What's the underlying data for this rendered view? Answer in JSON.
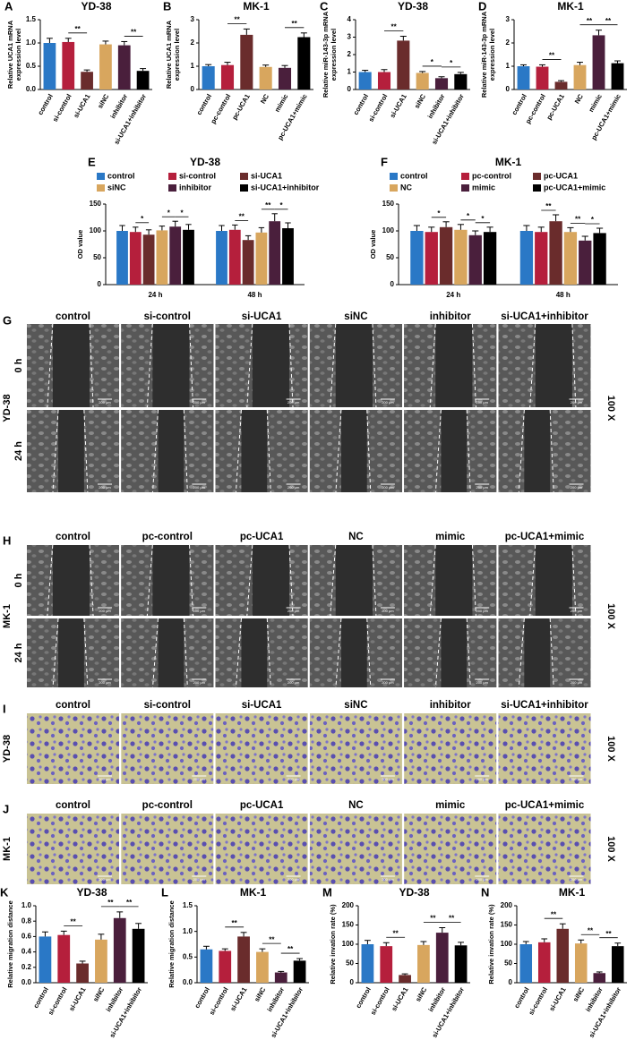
{
  "chart_data": [
    {
      "panel": "A",
      "type": "bar",
      "title": "YD-38",
      "ylabel": [
        "Relative UCA1 mRNA",
        "expression level"
      ],
      "categories": [
        "control",
        "si-control",
        "si-UCA1",
        "siNC",
        "inhibitor",
        "si-UCA1+inhibitor"
      ],
      "values": [
        1.0,
        1.02,
        0.38,
        0.97,
        0.95,
        0.4
      ],
      "errors": [
        0.1,
        0.08,
        0.04,
        0.07,
        0.08,
        0.05
      ],
      "colors": [
        "#2a78c6",
        "#b51f3c",
        "#6a2c2c",
        "#d8a65e",
        "#4a1f3c",
        "#000000"
      ],
      "ylim": [
        0,
        1.5
      ],
      "yticks": [
        {
          "value": 0,
          "label": "0.0"
        },
        {
          "value": 0.5,
          "label": "0.5"
        },
        {
          "value": 1,
          "label": "1.0"
        },
        {
          "value": 1.5,
          "label": "1.5"
        }
      ],
      "annotations": [
        {
          "between": [
            1,
            2
          ],
          "label": "**"
        },
        {
          "between": [
            4,
            5
          ],
          "label": "**"
        }
      ]
    },
    {
      "panel": "B",
      "type": "bar",
      "title": "MK-1",
      "ylabel": [
        "Relative UCA1 mRNA",
        "expression level"
      ],
      "categories": [
        "control",
        "pc-control",
        "pc-UCA1",
        "NC",
        "mimic",
        "pc-UCA1+mimic"
      ],
      "values": [
        1.0,
        1.05,
        2.35,
        0.97,
        0.93,
        2.25
      ],
      "errors": [
        0.07,
        0.12,
        0.25,
        0.08,
        0.1,
        0.18
      ],
      "colors": [
        "#2a78c6",
        "#b51f3c",
        "#6a2c2c",
        "#d8a65e",
        "#4a1f3c",
        "#000000"
      ],
      "ylim": [
        0,
        3
      ],
      "yticks": [
        0,
        1,
        2,
        3
      ],
      "annotations": [
        {
          "between": [
            1,
            2
          ],
          "label": "**"
        },
        {
          "between": [
            4,
            5
          ],
          "label": "**"
        }
      ]
    },
    {
      "panel": "C",
      "type": "bar",
      "title": "YD-38",
      "ylabel": [
        "Relative  miR-143-3p mRNA",
        "expression level"
      ],
      "categories": [
        "control",
        "si-control",
        "si-UCA1",
        "siNC",
        "inhibitor",
        "si-UCA1+inhibitor"
      ],
      "values": [
        1.0,
        1.0,
        2.8,
        0.95,
        0.65,
        0.88
      ],
      "errors": [
        0.1,
        0.14,
        0.25,
        0.08,
        0.08,
        0.1
      ],
      "colors": [
        "#2a78c6",
        "#b51f3c",
        "#6a2c2c",
        "#d8a65e",
        "#4a1f3c",
        "#000000"
      ],
      "ylim": [
        0,
        4
      ],
      "yticks": [
        0,
        1,
        2,
        3,
        4
      ],
      "annotations": [
        {
          "between": [
            1,
            2
          ],
          "label": "**"
        },
        {
          "between": [
            3,
            4
          ],
          "label": "*"
        },
        {
          "between": [
            4,
            5
          ],
          "label": "*"
        }
      ]
    },
    {
      "panel": "D",
      "type": "bar",
      "title": "MK-1",
      "ylabel": [
        "Relative  miR-143-3p mRNA",
        "expression level"
      ],
      "categories": [
        "control",
        "pc-control",
        "pc-UCA1",
        "NC",
        "mimic",
        "pc-UCA1+mimic"
      ],
      "values": [
        1.0,
        0.98,
        0.33,
        1.05,
        2.33,
        1.13
      ],
      "errors": [
        0.06,
        0.08,
        0.05,
        0.12,
        0.22,
        0.1
      ],
      "colors": [
        "#2a78c6",
        "#b51f3c",
        "#6a2c2c",
        "#d8a65e",
        "#4a1f3c",
        "#000000"
      ],
      "ylim": [
        0,
        3
      ],
      "yticks": [
        0,
        1,
        2,
        3
      ],
      "annotations": [
        {
          "between": [
            1,
            2
          ],
          "label": "**"
        },
        {
          "between": [
            3,
            4
          ],
          "label": "**"
        },
        {
          "between": [
            4,
            5
          ],
          "label": "**"
        }
      ]
    },
    {
      "panel": "E",
      "type": "grouped_bar",
      "title": "YD-38",
      "ylabel": [
        "OD value"
      ],
      "categories": [
        "24 h",
        "48 h"
      ],
      "ylim": [
        0,
        150
      ],
      "yticks": [
        0,
        50,
        100,
        150
      ],
      "series": [
        {
          "name": "control",
          "color": "#2a78c6",
          "values": [
            100,
            100
          ],
          "errors": [
            10,
            10
          ]
        },
        {
          "name": "si-control",
          "color": "#b51f3c",
          "values": [
            98,
            102
          ],
          "errors": [
            9,
            9
          ]
        },
        {
          "name": "si-UCA1",
          "color": "#6a2c2c",
          "values": [
            93,
            83
          ],
          "errors": [
            9,
            8
          ]
        },
        {
          "name": "siNC",
          "color": "#d8a65e",
          "values": [
            101,
            97
          ],
          "errors": [
            8,
            9
          ]
        },
        {
          "name": "inhibitor",
          "color": "#4a1f3c",
          "values": [
            108,
            118
          ],
          "errors": [
            10,
            14
          ]
        },
        {
          "name": "si-UCA1+inhibitor",
          "color": "#000000",
          "values": [
            102,
            105
          ],
          "errors": [
            10,
            10
          ]
        }
      ],
      "annotations": [
        {
          "group": 0,
          "between": [
            1,
            2
          ],
          "label": "*"
        },
        {
          "group": 0,
          "between": [
            3,
            4
          ],
          "label": "*"
        },
        {
          "group": 0,
          "between": [
            4,
            5
          ],
          "label": "*"
        },
        {
          "group": 1,
          "between": [
            1,
            2
          ],
          "label": "**"
        },
        {
          "group": 1,
          "between": [
            3,
            4
          ],
          "label": "**"
        },
        {
          "group": 1,
          "between": [
            4,
            5
          ],
          "label": "*"
        }
      ]
    },
    {
      "panel": "F",
      "type": "grouped_bar",
      "title": "MK-1",
      "ylabel": [
        "OD value"
      ],
      "categories": [
        "24 h",
        "48 h"
      ],
      "ylim": [
        0,
        150
      ],
      "yticks": [
        0,
        50,
        100,
        150
      ],
      "series": [
        {
          "name": "control",
          "color": "#2a78c6",
          "values": [
            100,
            100
          ],
          "errors": [
            10,
            10
          ]
        },
        {
          "name": "pc-control",
          "color": "#b51f3c",
          "values": [
            98,
            98
          ],
          "errors": [
            9,
            9
          ]
        },
        {
          "name": "pc-UCA1",
          "color": "#6a2c2c",
          "values": [
            107,
            118
          ],
          "errors": [
            10,
            12
          ]
        },
        {
          "name": "NC",
          "color": "#d8a65e",
          "values": [
            102,
            98
          ],
          "errors": [
            10,
            8
          ]
        },
        {
          "name": "mimic",
          "color": "#4a1f3c",
          "values": [
            92,
            82
          ],
          "errors": [
            8,
            8
          ]
        },
        {
          "name": "pc-UCA1+mimic",
          "color": "#000000",
          "values": [
            98,
            96
          ],
          "errors": [
            9,
            9
          ]
        }
      ],
      "annotations": [
        {
          "group": 0,
          "between": [
            1,
            2
          ],
          "label": "*"
        },
        {
          "group": 0,
          "between": [
            3,
            4
          ],
          "label": "*"
        },
        {
          "group": 0,
          "between": [
            4,
            5
          ],
          "label": "*"
        },
        {
          "group": 1,
          "between": [
            1,
            2
          ],
          "label": "**"
        },
        {
          "group": 1,
          "between": [
            3,
            4
          ],
          "label": "**"
        },
        {
          "group": 1,
          "between": [
            4,
            5
          ],
          "label": "*"
        }
      ]
    },
    {
      "panel": "K",
      "type": "bar",
      "title": "YD-38",
      "ylabel": [
        "Relative migration distance"
      ],
      "categories": [
        "control",
        "si-control",
        "si-UCA1",
        "siNC",
        "inhibitor",
        "si-UCA1+inhibitor"
      ],
      "values": [
        0.6,
        0.62,
        0.25,
        0.56,
        0.84,
        0.7
      ],
      "errors": [
        0.06,
        0.05,
        0.03,
        0.07,
        0.08,
        0.07
      ],
      "colors": [
        "#2a78c6",
        "#b51f3c",
        "#6a2c2c",
        "#d8a65e",
        "#4a1f3c",
        "#000000"
      ],
      "ylim": [
        0,
        1
      ],
      "yticks": [
        {
          "value": 0,
          "label": "0.0"
        },
        0.2,
        0.4,
        0.6,
        0.8,
        {
          "value": 1,
          "label": "1.0"
        }
      ],
      "annotations": [
        {
          "between": [
            1,
            2
          ],
          "label": "**"
        },
        {
          "between": [
            3,
            4
          ],
          "label": "**"
        },
        {
          "between": [
            4,
            5
          ],
          "label": "**"
        }
      ]
    },
    {
      "panel": "L",
      "type": "bar",
      "title": "MK-1",
      "ylabel": [
        "Relative migration distance"
      ],
      "categories": [
        "control",
        "si-control",
        "si-UCA1",
        "siNC",
        "inhibitor",
        "si-UCA1+inhibitor"
      ],
      "values": [
        0.65,
        0.62,
        0.9,
        0.6,
        0.2,
        0.43
      ],
      "errors": [
        0.06,
        0.04,
        0.08,
        0.06,
        0.02,
        0.04
      ],
      "colors": [
        "#2a78c6",
        "#b51f3c",
        "#6a2c2c",
        "#d8a65e",
        "#4a1f3c",
        "#000000"
      ],
      "ylim": [
        0,
        1.5
      ],
      "yticks": [
        {
          "value": 0,
          "label": "0.0"
        },
        0.5,
        {
          "value": 1,
          "label": "1.0"
        },
        1.5
      ],
      "annotations": [
        {
          "between": [
            1,
            2
          ],
          "label": "**"
        },
        {
          "between": [
            3,
            4
          ],
          "label": "**"
        },
        {
          "between": [
            4,
            5
          ],
          "label": "**"
        }
      ]
    },
    {
      "panel": "M",
      "type": "bar",
      "title": "YD-38",
      "ylabel": [
        "Relative invation rate (%)"
      ],
      "categories": [
        "control",
        "si-control",
        "si-UCA1",
        "siNC",
        "inhibitor",
        "si-UCA1+inhibitor"
      ],
      "values": [
        100,
        95,
        20,
        98,
        130,
        97
      ],
      "errors": [
        10,
        9,
        3,
        9,
        13,
        8
      ],
      "colors": [
        "#2a78c6",
        "#b51f3c",
        "#6a2c2c",
        "#d8a65e",
        "#4a1f3c",
        "#000000"
      ],
      "ylim": [
        0,
        200
      ],
      "yticks": [
        0,
        50,
        100,
        150,
        200
      ],
      "annotations": [
        {
          "between": [
            1,
            2
          ],
          "label": "**"
        },
        {
          "between": [
            3,
            4
          ],
          "label": "**"
        },
        {
          "between": [
            4,
            5
          ],
          "label": "**"
        }
      ]
    },
    {
      "panel": "N",
      "type": "bar",
      "title": "MK-1",
      "ylabel": [
        "Relative invation rate (%)"
      ],
      "categories": [
        "control",
        "si-control",
        "si-UCA1",
        "siNC",
        "inhibitor",
        "si-UCA1+inhibitor"
      ],
      "values": [
        100,
        105,
        140,
        102,
        25,
        95
      ],
      "errors": [
        7,
        9,
        13,
        9,
        3,
        8
      ],
      "colors": [
        "#2a78c6",
        "#b51f3c",
        "#6a2c2c",
        "#d8a65e",
        "#4a1f3c",
        "#000000"
      ],
      "ylim": [
        0,
        200
      ],
      "yticks": [
        0,
        50,
        100,
        150,
        200
      ],
      "annotations": [
        {
          "between": [
            1,
            2
          ],
          "label": "**"
        },
        {
          "between": [
            3,
            4
          ],
          "label": "**"
        },
        {
          "between": [
            4,
            5
          ],
          "label": "**"
        }
      ]
    }
  ],
  "image_panels": [
    {
      "panel": "G",
      "cell_line": "YD-38",
      "columns": [
        "control",
        "si-control",
        "si-UCA1",
        "siNC",
        "inhibitor",
        "si-UCA1+inhibitor"
      ],
      "rows": [
        "0 h",
        "24 h"
      ],
      "magnification": "100 X",
      "scale_bar": "200 μm"
    },
    {
      "panel": "H",
      "cell_line": "MK-1",
      "columns": [
        "control",
        "pc-control",
        "pc-UCA1",
        "NC",
        "mimic",
        "pc-UCA1+mimic"
      ],
      "rows": [
        "0 h",
        "24 h"
      ],
      "magnification": "100 X",
      "scale_bar": "200 μm"
    },
    {
      "panel": "I",
      "cell_line": "YD-38",
      "columns": [
        "control",
        "si-control",
        "si-UCA1",
        "siNC",
        "inhibitor",
        "si-UCA1+inhibitor"
      ],
      "magnification": "100 X",
      "scale_bar": "200 μm"
    },
    {
      "panel": "J",
      "cell_line": "MK-1",
      "columns": [
        "control",
        "pc-control",
        "pc-UCA1",
        "NC",
        "mimic",
        "pc-UCA1+mimic"
      ],
      "magnification": "100 X",
      "scale_bar": "200 μm"
    }
  ]
}
